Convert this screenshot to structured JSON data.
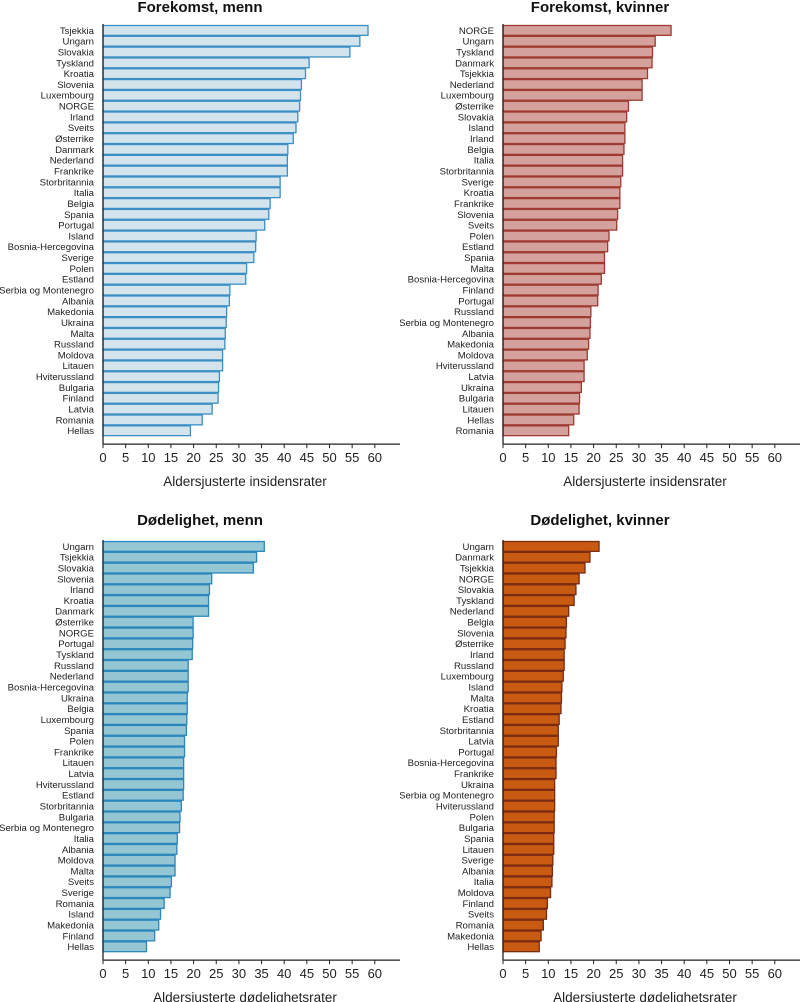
{
  "chart_data": [
    {
      "type": "bar",
      "orientation": "horizontal",
      "title": "Forekomst, menn",
      "xlabel": "Aldersjusterte insidensrater",
      "xlim": [
        0,
        65
      ],
      "xticks": [
        "0",
        "5",
        "10",
        "15",
        "20",
        "25",
        "30",
        "35",
        "40",
        "45",
        "50",
        "55",
        "60"
      ],
      "fill": "#d3e4ec",
      "stroke": "#3a8fc4",
      "categories": [
        "Tsjekkia",
        "Ungarn",
        "Slovakia",
        "Tyskland",
        "Kroatia",
        "Slovenia",
        "Luxembourg",
        "NORGE",
        "Irland",
        "Sveits",
        "Østerrike",
        "Danmark",
        "Nederland",
        "Frankrike",
        "Storbritannia",
        "Italia",
        "Belgia",
        "Spania",
        "Portugal",
        "Island",
        "Bosnia-Hercegovina",
        "Sverige",
        "Polen",
        "Estland",
        "Serbia og Montenegro",
        "Albania",
        "Makedonia",
        "Ukraina",
        "Malta",
        "Russland",
        "Moldova",
        "Litauen",
        "Hviterussland",
        "Bulgaria",
        "Finland",
        "Latvia",
        "Romania",
        "Hellas"
      ],
      "values": [
        58.5,
        56.7,
        54.5,
        45.5,
        44.7,
        43.8,
        43.6,
        43.4,
        43.0,
        42.6,
        42.0,
        40.8,
        40.7,
        40.7,
        39.1,
        39.1,
        36.9,
        36.6,
        35.7,
        33.8,
        33.7,
        33.3,
        31.7,
        31.5,
        28.0,
        27.9,
        27.3,
        27.2,
        27.0,
        26.9,
        26.4,
        26.4,
        25.7,
        25.5,
        25.4,
        24.1,
        21.9,
        19.3
      ]
    },
    {
      "type": "bar",
      "orientation": "horizontal",
      "title": "Forekomst, kvinner",
      "xlabel": "Aldersjusterte insidensrater",
      "xlim": [
        0,
        65
      ],
      "xticks": [
        "0",
        "5",
        "10",
        "15",
        "20",
        "25",
        "30",
        "35",
        "40",
        "45",
        "50",
        "55",
        "60"
      ],
      "fill": "#d4a19c",
      "stroke": "#9e3a30",
      "categories": [
        "NORGE",
        "Ungarn",
        "Tyskland",
        "Danmark",
        "Tsjekkia",
        "Nederland",
        "Luxembourg",
        "Østerrike",
        "Slovakia",
        "Island",
        "Irland",
        "Belgia",
        "Italia",
        "Storbritannia",
        "Sverige",
        "Kroatia",
        "Frankrike",
        "Slovenia",
        "Sveits",
        "Polen",
        "Estland",
        "Spania",
        "Malta",
        "Bosnia-Hercegovina",
        "Finland",
        "Portugal",
        "Russland",
        "Serbia og Montenegro",
        "Albania",
        "Makedonia",
        "Moldova",
        "Hviterussland",
        "Latvia",
        "Ukraina",
        "Bulgaria",
        "Litauen",
        "Hellas",
        "Romania"
      ],
      "values": [
        37.1,
        33.6,
        33.0,
        32.9,
        31.9,
        30.7,
        30.7,
        27.7,
        27.3,
        26.9,
        26.9,
        26.7,
        26.4,
        26.4,
        26.0,
        25.8,
        25.8,
        25.3,
        25.1,
        23.4,
        23.1,
        22.4,
        22.4,
        21.7,
        21.0,
        20.9,
        19.4,
        19.3,
        19.2,
        18.9,
        18.6,
        17.9,
        17.9,
        17.3,
        16.9,
        16.8,
        15.6,
        14.5
      ]
    },
    {
      "type": "bar",
      "orientation": "horizontal",
      "title": "Dødelighet, menn",
      "xlabel": "Aldersjusterte dødelighetsrater",
      "xlim": [
        0,
        65
      ],
      "xticks": [
        "0",
        "5",
        "10",
        "15",
        "20",
        "25",
        "30",
        "35",
        "40",
        "45",
        "50",
        "55",
        "60"
      ],
      "fill": "#94c6d4",
      "stroke": "#2a86bc",
      "categories": [
        "Ungarn",
        "Tsjekkia",
        "Slovakia",
        "Slovenia",
        "Irland",
        "Kroatia",
        "Danmark",
        "Østerrike",
        "NORGE",
        "Portugal",
        "Tyskland",
        "Russland",
        "Nederland",
        "Bosnia-Hercegovina",
        "Ukraina",
        "Belgia",
        "Luxembourg",
        "Spania",
        "Polen",
        "Frankrike",
        "Litauen",
        "Latvia",
        "Hviterussland",
        "Estland",
        "Storbritannia",
        "Bulgaria",
        "Serbia og Montenegro",
        "Italia",
        "Albania",
        "Moldova",
        "Malta",
        "Sveits",
        "Sverige",
        "Romania",
        "Island",
        "Makedonia",
        "Finland",
        "Hellas"
      ],
      "values": [
        35.6,
        33.9,
        33.2,
        24.0,
        23.5,
        23.3,
        23.3,
        19.9,
        19.9,
        19.8,
        19.7,
        18.8,
        18.8,
        18.8,
        18.6,
        18.6,
        18.5,
        18.4,
        18.0,
        18.0,
        17.8,
        17.8,
        17.8,
        17.7,
        17.3,
        17.0,
        16.9,
        16.4,
        16.3,
        15.9,
        15.9,
        15.1,
        14.8,
        13.5,
        12.7,
        12.3,
        11.4,
        9.6
      ]
    },
    {
      "type": "bar",
      "orientation": "horizontal",
      "title": "Dødelighet, kvinner",
      "xlabel": "Aldersjusterte dødelighetsrater",
      "xlim": [
        0,
        65
      ],
      "xticks": [
        "0",
        "5",
        "10",
        "15",
        "20",
        "25",
        "30",
        "35",
        "40",
        "45",
        "50",
        "55",
        "60"
      ],
      "fill": "#c85a12",
      "stroke": "#7a2a10",
      "categories": [
        "Ungarn",
        "Danmark",
        "Tsjekkia",
        "NORGE",
        "Slovakia",
        "Tyskland",
        "Nederland",
        "Belgia",
        "Slovenia",
        "Østerrike",
        "Irland",
        "Russland",
        "Luxembourg",
        "Island",
        "Malta",
        "Kroatia",
        "Estland",
        "Storbritannia",
        "Latvia",
        "Portugal",
        "Bosnia-Hercegovina",
        "Frankrike",
        "Ukraina",
        "Serbia og Montenegro",
        "Hviterussland",
        "Polen",
        "Bulgaria",
        "Spania",
        "Litauen",
        "Sverige",
        "Albania",
        "Italia",
        "Moldova",
        "Finland",
        "Sveits",
        "Romania",
        "Makedonia",
        "Hellas"
      ],
      "values": [
        21.2,
        19.2,
        18.1,
        16.8,
        16.1,
        15.7,
        14.5,
        14.0,
        13.9,
        13.7,
        13.5,
        13.5,
        13.3,
        13.0,
        12.9,
        12.8,
        12.4,
        12.2,
        12.2,
        11.8,
        11.7,
        11.7,
        11.4,
        11.4,
        11.4,
        11.3,
        11.3,
        11.2,
        11.2,
        11.0,
        10.9,
        10.8,
        10.5,
        9.8,
        9.6,
        8.9,
        8.4,
        8.0
      ]
    }
  ]
}
